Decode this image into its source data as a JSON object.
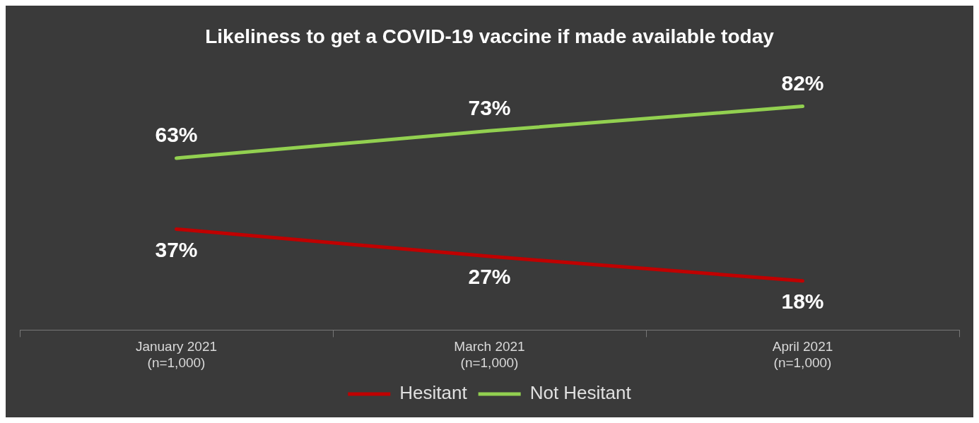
{
  "chart_data": {
    "type": "line",
    "title": "Likeliness to get a COVID-19 vaccine if made available today",
    "categories": [
      "January 2021\n(n=1,000)",
      "March 2021\n(n=1,000)",
      "April 2021\n(n=1,000)"
    ],
    "series": [
      {
        "name": "Hesitant",
        "color": "#c00000",
        "values": [
          37,
          27,
          18
        ],
        "value_labels": [
          "37%",
          "27%",
          "18%"
        ]
      },
      {
        "name": "Not Hesitant",
        "color": "#92d050",
        "values": [
          63,
          73,
          82
        ],
        "value_labels": [
          "63%",
          "73%",
          "82%"
        ]
      }
    ],
    "tick_labels": "x",
    "legend": "bottom",
    "marker": "none"
  }
}
